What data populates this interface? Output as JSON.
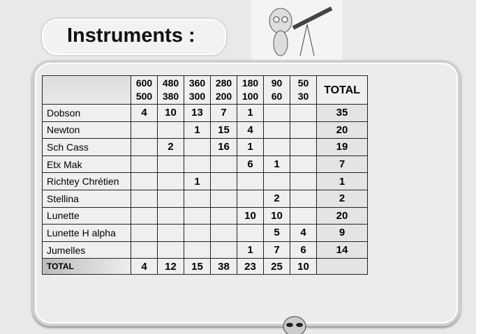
{
  "title": "Instruments :",
  "table": {
    "columns": [
      [
        "600",
        "500"
      ],
      [
        "480",
        "380"
      ],
      [
        "360",
        "300"
      ],
      [
        "280",
        "200"
      ],
      [
        "180",
        "100"
      ],
      [
        "90",
        "60"
      ],
      [
        "50",
        "30"
      ]
    ],
    "total_label": "TOTAL",
    "rows": [
      {
        "name": "Dobson",
        "values": [
          "4",
          "10",
          "13",
          "7",
          "1",
          "",
          ""
        ],
        "total": "35"
      },
      {
        "name": "Newton",
        "values": [
          "",
          "",
          "1",
          "15",
          "4",
          "",
          ""
        ],
        "total": "20"
      },
      {
        "name": "Sch Cass",
        "values": [
          "",
          "2",
          "",
          "16",
          "1",
          "",
          ""
        ],
        "total": "19"
      },
      {
        "name": "Etx Mak",
        "values": [
          "",
          "",
          "",
          "",
          "6",
          "1",
          ""
        ],
        "total": "7"
      },
      {
        "name": "Richtey Chrétien",
        "values": [
          "",
          "",
          "1",
          "",
          "",
          "",
          ""
        ],
        "total": "1"
      },
      {
        "name": "Stellina",
        "values": [
          "",
          "",
          "",
          "",
          "",
          "2",
          ""
        ],
        "total": "2"
      },
      {
        "name": "Lunette",
        "values": [
          "",
          "",
          "",
          "",
          "10",
          "10",
          ""
        ],
        "total": "20"
      },
      {
        "name": "Lunette  H alpha",
        "values": [
          "",
          "",
          "",
          "",
          "",
          "5",
          "4"
        ],
        "total": "9"
      },
      {
        "name": "Jumelles",
        "values": [
          "",
          "",
          "",
          "",
          "1",
          "7",
          "6"
        ],
        "total": "14"
      }
    ],
    "totals_row": {
      "label": "TOTAL",
      "values": [
        "4",
        "12",
        "15",
        "38",
        "23",
        "25",
        "10"
      ],
      "total": ""
    }
  }
}
